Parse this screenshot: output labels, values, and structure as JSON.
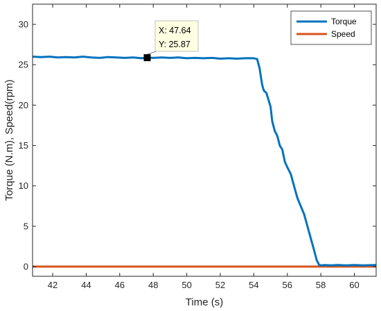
{
  "chart_data": {
    "type": "line",
    "xlabel": "Time (s)",
    "ylabel": "Torque (N.m), Speed(rpm)",
    "xlim": [
      40.8,
      61.3
    ],
    "ylim": [
      -1.2,
      32.5
    ],
    "xticks": [
      "42",
      "44",
      "46",
      "48",
      "50",
      "52",
      "54",
      "56",
      "58",
      "60"
    ],
    "yticks": [
      "0",
      "5",
      "10",
      "15",
      "20",
      "25",
      "30"
    ],
    "grid": false,
    "legend_position": "top-right",
    "series": [
      {
        "name": "Torque",
        "color": "#0072BD",
        "x": [
          40.8,
          41.3,
          41.8,
          42.3,
          42.8,
          43.3,
          43.8,
          44.3,
          44.8,
          45.3,
          45.8,
          46.3,
          46.8,
          47.3,
          47.64,
          48.0,
          48.5,
          49.0,
          49.5,
          50.0,
          50.5,
          51.0,
          51.5,
          52.0,
          52.5,
          53.0,
          53.5,
          54.0,
          54.2,
          54.35,
          54.5,
          54.6,
          54.75,
          54.9,
          55.0,
          55.1,
          55.25,
          55.4,
          55.55,
          55.7,
          55.85,
          56.0,
          56.2,
          56.4,
          56.6,
          56.8,
          57.0,
          57.2,
          57.4,
          57.6,
          57.75,
          57.9,
          58.05,
          58.2,
          58.6,
          59.0,
          59.5,
          60.0,
          60.5,
          61.3
        ],
        "y": [
          26.0,
          25.95,
          26.0,
          25.9,
          25.95,
          25.9,
          26.0,
          25.9,
          25.85,
          25.95,
          25.9,
          25.85,
          25.9,
          25.8,
          25.87,
          25.85,
          25.9,
          25.85,
          25.9,
          25.8,
          25.85,
          25.8,
          25.85,
          25.75,
          25.8,
          25.75,
          25.8,
          25.8,
          25.7,
          24.5,
          22.5,
          21.8,
          21.5,
          20.5,
          19.8,
          18.0,
          16.8,
          16.2,
          15.0,
          14.5,
          13.0,
          12.3,
          11.5,
          10.0,
          8.5,
          7.5,
          6.5,
          5.0,
          3.5,
          2.0,
          0.8,
          0.2,
          0.15,
          0.2,
          0.15,
          0.2,
          0.15,
          0.2,
          0.15,
          0.2
        ]
      },
      {
        "name": "Speed",
        "color": "#D95319",
        "x": [
          40.8,
          61.3
        ],
        "y": [
          0,
          0
        ]
      }
    ],
    "annotations": [
      {
        "type": "datatip",
        "x_text": "X: 47.64",
        "y_text": "Y: 25.87",
        "x": 47.64,
        "y": 25.87
      }
    ]
  }
}
